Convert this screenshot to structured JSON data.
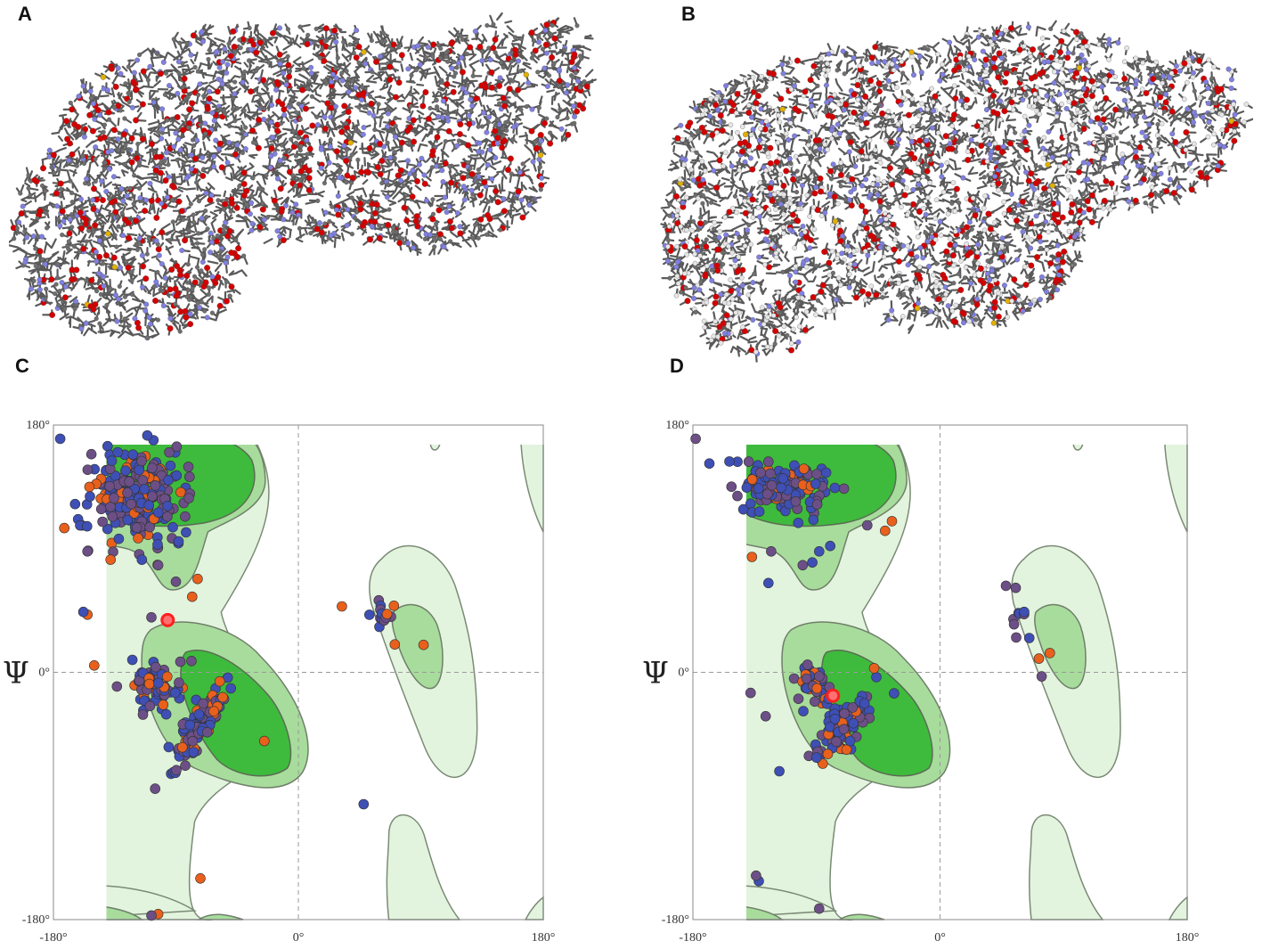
{
  "panels": {
    "A": {
      "letter": "A"
    },
    "B": {
      "letter": "B"
    },
    "C": {
      "letter": "C"
    },
    "D": {
      "letter": "D"
    }
  },
  "rama_axes": {
    "psi_symbol": "Ψ",
    "y_ticks": [
      "180°",
      "0°",
      "-180°"
    ],
    "x_ticks": [
      "-180°",
      "0°",
      "180°"
    ],
    "xlim": [
      -180,
      180
    ],
    "ylim": [
      -180,
      180
    ]
  },
  "colors": {
    "carbon": "#6e6e6e",
    "oxygen": "#d40000",
    "nitrogen": "#8080e0",
    "sulfur": "#e0b000",
    "hydrogen": "#e6e6e6",
    "region_allowed": "#e3f4de",
    "region_favoured_outer": "#a8dc9c",
    "region_favoured_core": "#3ebb3c",
    "dot_blue": "#3e4fb5",
    "dot_purple": "#6c4f86",
    "dot_orange": "#e8601c",
    "dot_highlight": "#ff2020"
  },
  "chart_data": [
    {
      "type": "scatter",
      "panel": "C",
      "title": "",
      "xlabel": "",
      "ylabel": "Ψ",
      "xlim": [
        -180,
        180
      ],
      "ylim": [
        -180,
        180
      ],
      "clusters": [
        {
          "region": "beta",
          "center": [
            -118,
            128
          ],
          "spread": [
            28,
            26
          ],
          "count": 260
        },
        {
          "region": "alpha-right",
          "center": [
            -72,
            -38
          ],
          "spread": [
            18,
            22
          ],
          "count": 110
        },
        {
          "region": "alpha-left",
          "center": [
            -105,
            -10
          ],
          "spread": [
            14,
            14
          ],
          "count": 70
        },
        {
          "region": "left-handed",
          "center": [
            62,
            38
          ],
          "spread": [
            8,
            14
          ],
          "count": 14
        }
      ],
      "outliers": [
        {
          "x": -172,
          "y": 105,
          "c": "orange"
        },
        {
          "x": -155,
          "y": 88,
          "c": "purple"
        },
        {
          "x": -155,
          "y": 42,
          "c": "orange"
        },
        {
          "x": -158,
          "y": 44,
          "c": "blue"
        },
        {
          "x": -138,
          "y": 82,
          "c": "orange"
        },
        {
          "x": -115,
          "y": 82,
          "c": "blue"
        },
        {
          "x": -103,
          "y": 78,
          "c": "purple"
        },
        {
          "x": -90,
          "y": 66,
          "c": "purple"
        },
        {
          "x": -108,
          "y": 40,
          "c": "purple"
        },
        {
          "x": -74,
          "y": 68,
          "c": "orange"
        },
        {
          "x": -78,
          "y": 55,
          "c": "orange"
        },
        {
          "x": 48,
          "y": -96,
          "c": "blue"
        },
        {
          "x": -72,
          "y": -150,
          "c": "orange"
        },
        {
          "x": -103,
          "y": -176,
          "c": "orange"
        },
        {
          "x": -108,
          "y": -177,
          "c": "purple"
        },
        {
          "x": -25,
          "y": -50,
          "c": "orange"
        },
        {
          "x": -150,
          "y": 5,
          "c": "orange"
        },
        {
          "x": 92,
          "y": 20,
          "c": "orange"
        },
        {
          "x": 32,
          "y": 48,
          "c": "orange"
        },
        {
          "x": -175,
          "y": 170,
          "c": "blue"
        }
      ],
      "highlight": [
        {
          "x": -96,
          "y": 38
        }
      ]
    },
    {
      "type": "scatter",
      "panel": "D",
      "title": "",
      "xlabel": "",
      "ylabel": "Ψ",
      "xlim": [
        -180,
        180
      ],
      "ylim": [
        -180,
        180
      ],
      "clusters": [
        {
          "region": "beta",
          "center": [
            -115,
            135
          ],
          "spread": [
            26,
            16
          ],
          "count": 150
        },
        {
          "region": "alpha-right",
          "center": [
            -72,
            -40
          ],
          "spread": [
            16,
            14
          ],
          "count": 110
        },
        {
          "region": "alpha-left",
          "center": [
            -90,
            -8
          ],
          "spread": [
            12,
            14
          ],
          "count": 40
        },
        {
          "region": "left-handed",
          "center": [
            56,
            42
          ],
          "spread": [
            6,
            12
          ],
          "count": 8
        }
      ],
      "outliers": [
        {
          "x": -178,
          "y": 170,
          "c": "purple"
        },
        {
          "x": -168,
          "y": 152,
          "c": "blue"
        },
        {
          "x": -137,
          "y": 84,
          "c": "orange"
        },
        {
          "x": -123,
          "y": 88,
          "c": "purple"
        },
        {
          "x": -125,
          "y": 65,
          "c": "blue"
        },
        {
          "x": -100,
          "y": 78,
          "c": "purple"
        },
        {
          "x": -93,
          "y": 80,
          "c": "blue"
        },
        {
          "x": -88,
          "y": 88,
          "c": "blue"
        },
        {
          "x": -80,
          "y": 92,
          "c": "blue"
        },
        {
          "x": -40,
          "y": 103,
          "c": "orange"
        },
        {
          "x": -35,
          "y": 110,
          "c": "orange"
        },
        {
          "x": -53,
          "y": 107,
          "c": "purple"
        },
        {
          "x": -117,
          "y": -72,
          "c": "blue"
        },
        {
          "x": -138,
          "y": -15,
          "c": "purple"
        },
        {
          "x": -127,
          "y": -32,
          "c": "purple"
        },
        {
          "x": -48,
          "y": 3,
          "c": "orange"
        },
        {
          "x": -132,
          "y": -152,
          "c": "blue"
        },
        {
          "x": -134,
          "y": -148,
          "c": "purple"
        },
        {
          "x": -88,
          "y": -172,
          "c": "purple"
        },
        {
          "x": 80,
          "y": 14,
          "c": "orange"
        },
        {
          "x": 72,
          "y": 10,
          "c": "orange"
        },
        {
          "x": 74,
          "y": -3,
          "c": "purple"
        },
        {
          "x": 48,
          "y": 63,
          "c": "purple"
        },
        {
          "x": 65,
          "y": 25,
          "c": "blue"
        },
        {
          "x": -90,
          "y": -62,
          "c": "blue"
        }
      ],
      "highlight": [
        {
          "x": -78,
          "y": -17
        }
      ]
    }
  ]
}
